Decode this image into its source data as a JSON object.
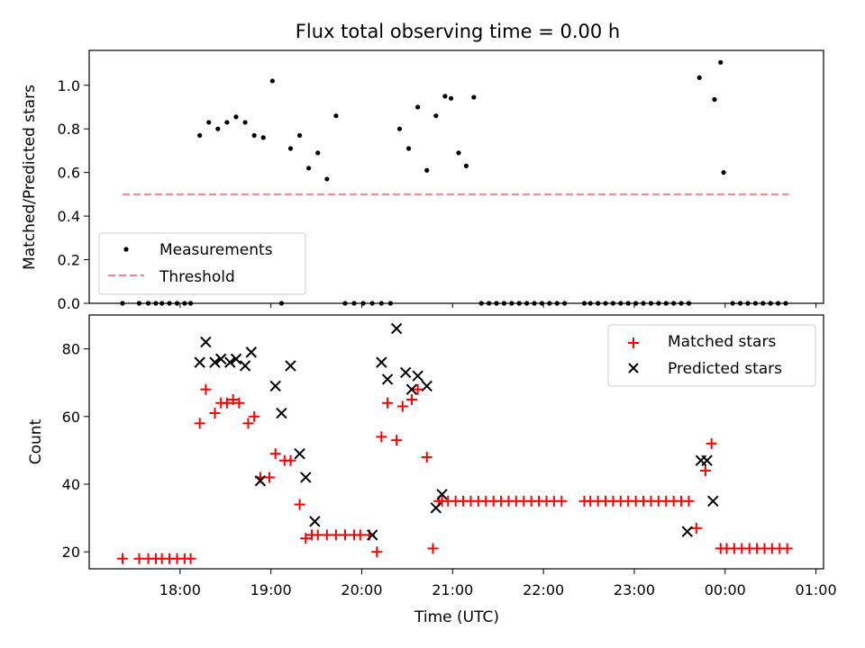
{
  "title": "Flux total observing time = 0.00 h",
  "colors": {
    "measurement": "#000000",
    "threshold": "#ff8080",
    "matched": "#ff0000",
    "predicted": "#000000"
  },
  "chart_data": [
    {
      "type": "scatter",
      "ylabel": "Matched/Predicted stars",
      "xlim": [
        "17:00",
        "01:05"
      ],
      "ylim": [
        0,
        1.16
      ],
      "yticks": [
        "0.0",
        "0.2",
        "0.4",
        "0.6",
        "0.8",
        "1.0"
      ],
      "grid": false,
      "legend": {
        "position": "bottom-left",
        "entries": [
          "Measurements",
          "Threshold"
        ]
      },
      "threshold": {
        "name": "Threshold",
        "value": 0.5,
        "x_range": [
          "17:22",
          "00:42"
        ]
      },
      "series": [
        {
          "name": "Measurements",
          "x": [
            "17:22",
            "17:33",
            "17:39",
            "17:44",
            "17:48",
            "17:53",
            "17:58",
            "18:03",
            "18:07",
            "18:13",
            "18:19",
            "18:25",
            "18:31",
            "18:37",
            "18:43",
            "18:49",
            "18:55",
            "19:01",
            "19:07",
            "19:13",
            "19:19",
            "19:25",
            "19:31",
            "19:37",
            "19:43",
            "19:49",
            "19:55",
            "20:01",
            "20:07",
            "20:13",
            "20:19",
            "20:25",
            "20:31",
            "20:37",
            "20:43",
            "20:49",
            "20:55",
            "20:59",
            "21:04",
            "21:09",
            "21:14",
            "21:19",
            "21:24",
            "21:29",
            "21:34",
            "21:39",
            "21:44",
            "21:49",
            "21:54",
            "21:59",
            "22:04",
            "22:09",
            "22:14",
            "22:27",
            "22:31",
            "22:36",
            "22:41",
            "22:46",
            "22:51",
            "22:56",
            "23:01",
            "23:06",
            "23:11",
            "23:16",
            "23:21",
            "23:26",
            "23:31",
            "23:36",
            "23:43",
            "23:53",
            "23:57",
            "23:59",
            "00:05",
            "00:10",
            "00:15",
            "00:20",
            "00:25",
            "00:30",
            "00:35",
            "00:40"
          ],
          "y": [
            0.0,
            0.0,
            0.0,
            0.0,
            0.0,
            0.0,
            0.0,
            0.0,
            0.0,
            0.77,
            0.83,
            0.8,
            0.83,
            0.855,
            0.83,
            0.77,
            0.76,
            1.02,
            0.0,
            0.71,
            0.77,
            0.62,
            0.69,
            0.57,
            0.86,
            0.0,
            0.0,
            0.0,
            0.0,
            0.0,
            0.0,
            0.8,
            0.71,
            0.9,
            0.61,
            0.86,
            0.95,
            0.94,
            0.69,
            0.63,
            0.945,
            0.0,
            0.0,
            0.0,
            0.0,
            0.0,
            0.0,
            0.0,
            0.0,
            0.0,
            0.0,
            0.0,
            0.0,
            0.0,
            0.0,
            0.0,
            0.0,
            0.0,
            0.0,
            0.0,
            0.0,
            0.0,
            0.0,
            0.0,
            0.0,
            0.0,
            0.0,
            0.0,
            1.035,
            0.935,
            1.105,
            0.6,
            0.0,
            0.0,
            0.0,
            0.0,
            0.0,
            0.0,
            0.0,
            0.0
          ]
        }
      ]
    },
    {
      "type": "scatter",
      "xlabel": "Time (UTC)",
      "ylabel": "Count",
      "xlim": [
        "17:00",
        "01:05"
      ],
      "ylim": [
        15,
        90
      ],
      "xticks": [
        "18:00",
        "19:00",
        "20:00",
        "21:00",
        "22:00",
        "23:00",
        "00:00",
        "01:00"
      ],
      "yticks": [
        "20",
        "40",
        "60",
        "80"
      ],
      "grid": false,
      "legend": {
        "position": "top-right",
        "entries": [
          "Matched stars",
          "Predicted stars"
        ]
      },
      "series": [
        {
          "name": "Matched stars",
          "marker": "+",
          "x": [
            "17:22",
            "17:33",
            "17:39",
            "17:44",
            "17:48",
            "17:53",
            "17:58",
            "18:03",
            "18:07",
            "18:13",
            "18:17",
            "18:23",
            "18:27",
            "18:31",
            "18:35",
            "18:39",
            "18:45",
            "18:49",
            "18:53",
            "18:59",
            "19:03",
            "19:09",
            "19:13",
            "19:19",
            "19:23",
            "19:27",
            "19:31",
            "19:37",
            "19:43",
            "19:49",
            "19:55",
            "19:59",
            "20:05",
            "20:10",
            "20:13",
            "20:17",
            "20:23",
            "20:27",
            "20:33",
            "20:37",
            "20:43",
            "20:47",
            "20:51",
            "20:53",
            "20:57",
            "21:02",
            "21:07",
            "21:12",
            "21:17",
            "21:22",
            "21:27",
            "21:32",
            "21:37",
            "21:42",
            "21:47",
            "21:52",
            "21:57",
            "22:02",
            "22:07",
            "22:12",
            "22:27",
            "22:31",
            "22:36",
            "22:41",
            "22:46",
            "22:51",
            "22:56",
            "23:01",
            "23:06",
            "23:11",
            "23:16",
            "23:21",
            "23:26",
            "23:31",
            "23:36",
            "23:41",
            "23:47",
            "23:51",
            "23:57",
            "00:01",
            "00:06",
            "00:11",
            "00:16",
            "00:21",
            "00:26",
            "00:31",
            "00:36",
            "00:41"
          ],
          "y": [
            18,
            18,
            18,
            18,
            18,
            18,
            18,
            18,
            18,
            58,
            68,
            61,
            64,
            64,
            65,
            64,
            58,
            60,
            42,
            42,
            49,
            47,
            47,
            34,
            24,
            25,
            25,
            25,
            25,
            25,
            25,
            25,
            25,
            20,
            54,
            64,
            53,
            63,
            65,
            68,
            48,
            21,
            35,
            35,
            35,
            35,
            35,
            35,
            35,
            35,
            35,
            35,
            35,
            35,
            35,
            35,
            35,
            35,
            35,
            35,
            35,
            35,
            35,
            35,
            35,
            35,
            35,
            35,
            35,
            35,
            35,
            35,
            35,
            35,
            35,
            27,
            44,
            52,
            21,
            21,
            21,
            21,
            21,
            21,
            21,
            21,
            21,
            21
          ]
        },
        {
          "name": "Predicted stars",
          "marker": "x",
          "x": [
            "18:13",
            "18:17",
            "18:23",
            "18:27",
            "18:33",
            "18:37",
            "18:43",
            "18:47",
            "18:53",
            "19:03",
            "19:07",
            "19:13",
            "19:19",
            "19:23",
            "19:29",
            "20:07",
            "20:13",
            "20:17",
            "20:23",
            "20:29",
            "20:33",
            "20:37",
            "20:43",
            "20:49",
            "20:53",
            "23:35",
            "23:44",
            "23:48",
            "23:52"
          ],
          "y": [
            76,
            82,
            76,
            77,
            76,
            77,
            75,
            79,
            41,
            69,
            61,
            75,
            49,
            42,
            29,
            25,
            76,
            71,
            86,
            73,
            68,
            72,
            69,
            33,
            37,
            26,
            47,
            47,
            35
          ]
        }
      ]
    }
  ]
}
